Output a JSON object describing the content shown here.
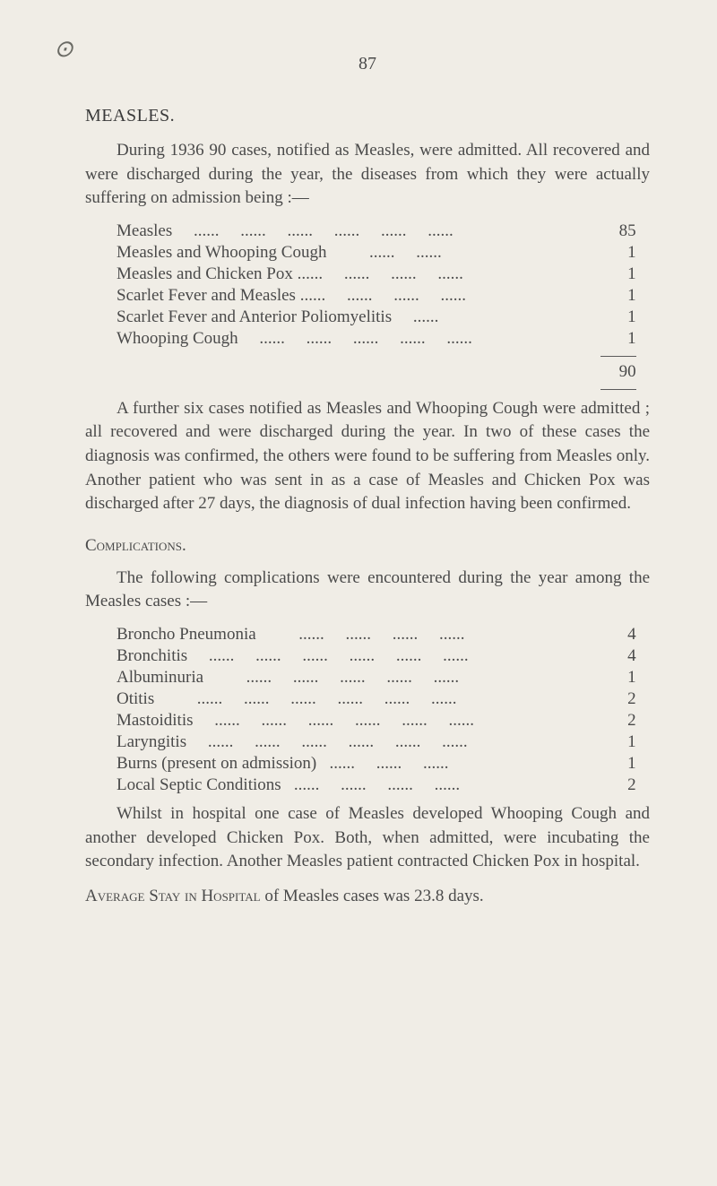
{
  "page_number": "87",
  "logo": "⊙",
  "section1": {
    "title": "MEASLES.",
    "intro": "During 1936 90 cases, notified as Measles, were admitted. All recovered and were discharged during the year, the diseases from which they were actually suffering on admission being :—",
    "rows": [
      {
        "label": "Measles",
        "value": "85"
      },
      {
        "label": "Measles and Whooping Cough",
        "value": "1"
      },
      {
        "label": "Measles and Chicken Pox",
        "value": "1"
      },
      {
        "label": "Scarlet Fever and Measles",
        "value": "1"
      },
      {
        "label": "Scarlet Fever and Anterior Poliomyelitis",
        "value": "1"
      },
      {
        "label": "Whooping Cough",
        "value": "1"
      }
    ],
    "total": "90",
    "followup": "A further six cases notified as Measles and Whooping Cough were admitted ; all recovered and were discharged during the year. In two of these cases the diagnosis was confirmed, the others were found to be suffering from Measles only. Another patient who was sent in as a case of Measles and Chicken Pox was discharged after 27 days, the diagnosis of dual infection having been confirmed."
  },
  "section2": {
    "title": "Complications.",
    "intro": "The following complications were encountered during the year among the Measles cases :—",
    "rows": [
      {
        "label": "Broncho Pneumonia",
        "value": "4"
      },
      {
        "label": "Bronchitis",
        "value": "4"
      },
      {
        "label": "Albuminuria",
        "value": "1"
      },
      {
        "label": "Otitis",
        "value": "2"
      },
      {
        "label": "Mastoiditis",
        "value": "2"
      },
      {
        "label": "Laryngitis",
        "value": "1"
      },
      {
        "label": "Burns (present on admission)",
        "value": "1"
      },
      {
        "label": "Local Septic Conditions",
        "value": "2"
      }
    ],
    "followup": "Whilst in hospital one case of Measles developed Whoop­ing Cough and another developed Chicken Pox. Both, when admitted, were incubating the secondary infection. Another Measles patient contracted Chicken Pox in hospital."
  },
  "footer": {
    "prefix": "Average Stay in Hospital",
    "suffix": " of Measles cases was 23.8 days."
  },
  "style": {
    "background_color": "#f0ede6",
    "text_color": "#4a4a4a",
    "font_family": "Georgia, 'Times New Roman', serif",
    "body_fontsize": 19,
    "title_fontsize": 20
  }
}
